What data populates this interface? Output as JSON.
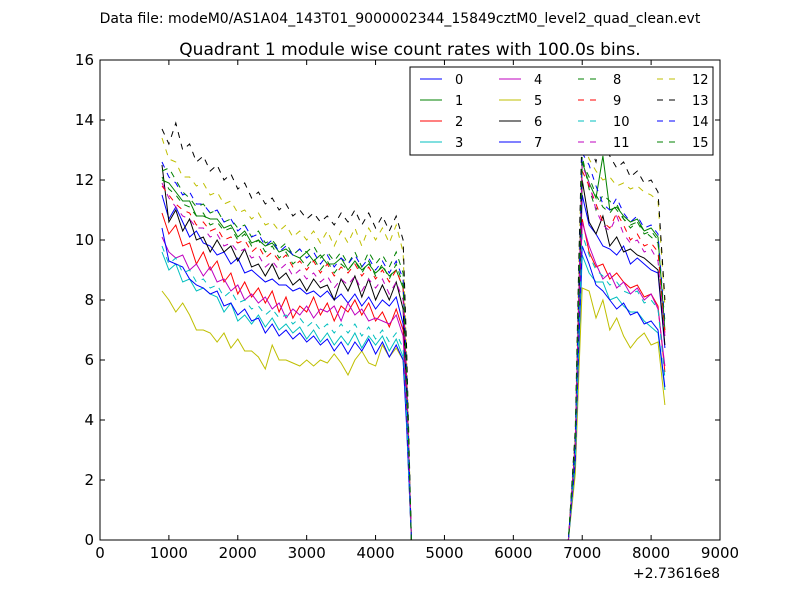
{
  "figure": {
    "suptitle": "Data file: modeM0/AS1A04_143T01_9000002344_15849cztM0_level2_quad_clean.evt",
    "title": "Quadrant 1 module wise count rates with 100.0s bins.",
    "x_offset_text": "+2.73616e8"
  },
  "chart_data": {
    "type": "line",
    "title": "Quadrant 1 module wise count rates with 100.0s bins.",
    "xlabel": "",
    "ylabel": "",
    "xlim": [
      0,
      9000
    ],
    "ylim": [
      0,
      16
    ],
    "x_offset": "+2.73616e8",
    "x_ticks": [
      "0",
      "1000",
      "2000",
      "3000",
      "4000",
      "5000",
      "6000",
      "7000",
      "8000",
      "9000"
    ],
    "y_ticks": [
      "0",
      "2",
      "4",
      "6",
      "8",
      "10",
      "12",
      "14",
      "16"
    ],
    "grid": false,
    "legend": {
      "placement": "top-right",
      "columns": 4
    },
    "x": [
      900,
      1000,
      1100,
      1200,
      1300,
      1400,
      1500,
      1600,
      1700,
      1800,
      1900,
      2000,
      2100,
      2200,
      2300,
      2400,
      2500,
      2600,
      2700,
      2800,
      2900,
      3000,
      3100,
      3200,
      3300,
      3400,
      3500,
      3600,
      3700,
      3800,
      3900,
      4000,
      4100,
      4200,
      4300,
      4400,
      4450,
      4520,
      4600,
      5000,
      5500,
      6000,
      6500,
      6800,
      6900,
      6950,
      7000,
      7100,
      7200,
      7300,
      7400,
      7500,
      7600,
      7700,
      7800,
      7900,
      8000,
      8100,
      8200
    ],
    "series": [
      {
        "name": "0",
        "color": "#0000ff",
        "style": "solid",
        "values": [
          11.5,
          10.7,
          11.1,
          10.6,
          10.1,
          10.3,
          9.9,
          9.8,
          9.5,
          9.6,
          9.2,
          9.4,
          8.9,
          9.0,
          8.8,
          8.6,
          8.7,
          8.5,
          8.5,
          8.3,
          8.4,
          8.2,
          8.3,
          8.1,
          8.3,
          8.0,
          8.2,
          7.9,
          8.2,
          7.8,
          8.1,
          7.7,
          8.0,
          7.8,
          8.1,
          7.2,
          4.8,
          0.0,
          0.0,
          0.0,
          0.0,
          0.0,
          0.0,
          0.0,
          3.0,
          7.5,
          11.5,
          10.5,
          10.2,
          9.8,
          9.7,
          9.5,
          9.8,
          9.2,
          9.4,
          9.2,
          9.0,
          8.9,
          6.4
        ]
      },
      {
        "name": "1",
        "color": "#008000",
        "style": "solid",
        "values": [
          12.0,
          11.9,
          11.6,
          11.3,
          11.3,
          10.8,
          10.8,
          10.7,
          10.7,
          10.4,
          10.5,
          10.1,
          10.3,
          9.9,
          10.0,
          9.8,
          9.9,
          9.6,
          9.7,
          9.5,
          9.4,
          9.6,
          9.3,
          9.5,
          9.2,
          9.2,
          9.4,
          9.0,
          9.3,
          9.0,
          9.2,
          8.9,
          9.1,
          8.8,
          9.0,
          8.4,
          5.5,
          0.0,
          0.0,
          0.0,
          0.0,
          0.0,
          0.0,
          0.0,
          3.3,
          8.2,
          12.6,
          11.9,
          11.4,
          12.8,
          11.0,
          11.1,
          10.8,
          10.6,
          10.7,
          10.3,
          10.4,
          10.1,
          7.0
        ]
      },
      {
        "name": "2",
        "color": "#ff0000",
        "style": "solid",
        "values": [
          10.9,
          10.2,
          10.5,
          9.8,
          9.9,
          9.2,
          9.6,
          9.0,
          9.3,
          8.6,
          8.9,
          8.2,
          8.6,
          8.1,
          8.4,
          7.9,
          8.3,
          7.6,
          8.1,
          7.4,
          7.8,
          7.6,
          8.1,
          7.5,
          7.9,
          7.3,
          7.8,
          7.6,
          8.0,
          7.5,
          7.9,
          7.3,
          7.6,
          7.1,
          7.7,
          7.0,
          4.6,
          0.0,
          0.0,
          0.0,
          0.0,
          0.0,
          0.0,
          0.0,
          2.8,
          7.0,
          10.7,
          9.6,
          9.1,
          9.2,
          8.7,
          8.9,
          8.6,
          8.4,
          8.5,
          8.1,
          8.2,
          7.8,
          5.6
        ]
      },
      {
        "name": "3",
        "color": "#00bfbf",
        "style": "solid",
        "values": [
          9.6,
          9.0,
          9.2,
          8.6,
          8.7,
          8.3,
          8.4,
          8.2,
          8.1,
          7.6,
          7.9,
          7.3,
          7.5,
          7.2,
          7.5,
          7.1,
          7.4,
          7.0,
          7.2,
          6.9,
          7.1,
          6.7,
          7.0,
          6.6,
          6.9,
          6.5,
          6.8,
          6.5,
          6.9,
          6.4,
          6.8,
          6.5,
          6.8,
          6.3,
          6.7,
          6.1,
          4.1,
          0.0,
          0.0,
          0.0,
          0.0,
          0.0,
          0.0,
          0.0,
          2.5,
          6.2,
          9.5,
          8.9,
          8.6,
          8.6,
          8.0,
          8.1,
          7.8,
          7.6,
          7.6,
          7.3,
          7.1,
          6.9,
          5.0
        ]
      },
      {
        "name": "4",
        "color": "#bf00bf",
        "style": "solid",
        "values": [
          10.1,
          9.6,
          9.4,
          9.5,
          9.0,
          9.2,
          8.8,
          9.1,
          8.6,
          8.7,
          8.3,
          8.5,
          8.0,
          8.2,
          7.9,
          8.1,
          7.7,
          7.9,
          7.4,
          7.7,
          7.5,
          7.8,
          7.4,
          7.7,
          7.6,
          7.8,
          7.3,
          7.9,
          7.5,
          7.7,
          7.3,
          7.4,
          7.3,
          7.2,
          7.5,
          6.8,
          4.4,
          0.0,
          0.0,
          0.0,
          0.0,
          0.0,
          0.0,
          0.0,
          2.9,
          7.1,
          10.6,
          9.8,
          9.2,
          8.7,
          8.9,
          8.4,
          8.6,
          8.2,
          8.4,
          8.0,
          8.2,
          7.7,
          5.8
        ]
      },
      {
        "name": "5",
        "color": "#bfbf00",
        "style": "solid",
        "values": [
          8.3,
          8.0,
          7.6,
          7.9,
          7.5,
          7.0,
          7.0,
          6.9,
          6.6,
          6.9,
          6.4,
          6.7,
          6.3,
          6.3,
          6.1,
          5.7,
          6.5,
          6.0,
          6.0,
          5.9,
          5.8,
          6.0,
          5.8,
          6.0,
          5.9,
          6.2,
          5.9,
          5.5,
          6.0,
          6.3,
          5.9,
          5.8,
          6.5,
          6.1,
          6.4,
          6.0,
          3.9,
          0.0,
          0.0,
          0.0,
          0.0,
          0.0,
          0.0,
          0.0,
          2.2,
          5.5,
          8.4,
          8.3,
          7.4,
          8.0,
          7.0,
          7.4,
          6.8,
          6.4,
          6.7,
          6.9,
          6.5,
          6.6,
          4.5
        ]
      },
      {
        "name": "6",
        "color": "#000000",
        "style": "solid",
        "values": [
          12.5,
          10.6,
          11.0,
          10.3,
          10.7,
          10.0,
          10.1,
          9.6,
          10.0,
          9.6,
          9.8,
          9.3,
          9.7,
          9.1,
          9.2,
          8.8,
          9.2,
          8.7,
          8.9,
          8.5,
          8.7,
          8.3,
          8.7,
          8.4,
          8.5,
          8.0,
          8.7,
          8.3,
          8.8,
          8.1,
          8.7,
          8.0,
          8.5,
          8.0,
          8.6,
          7.7,
          5.0,
          0.0,
          0.0,
          0.0,
          0.0,
          0.0,
          0.0,
          0.0,
          3.1,
          7.8,
          12.0,
          10.6,
          10.2,
          10.8,
          9.8,
          10.1,
          9.6,
          9.7,
          9.5,
          9.4,
          9.2,
          9.0,
          6.5
        ]
      },
      {
        "name": "7",
        "color": "#0000ff",
        "style": "solid",
        "values": [
          10.4,
          9.3,
          9.2,
          9.1,
          8.7,
          8.5,
          8.4,
          8.2,
          8.3,
          7.8,
          7.9,
          7.5,
          7.7,
          7.3,
          7.4,
          6.9,
          7.2,
          6.8,
          7.0,
          6.7,
          6.9,
          6.6,
          6.8,
          6.5,
          6.7,
          6.3,
          6.6,
          6.2,
          6.6,
          6.3,
          6.7,
          6.2,
          6.6,
          6.1,
          6.5,
          6.0,
          3.8,
          0.0,
          0.0,
          0.0,
          0.0,
          0.0,
          0.0,
          0.0,
          2.6,
          6.5,
          9.8,
          9.2,
          8.5,
          8.3,
          8.0,
          7.7,
          7.9,
          7.5,
          7.6,
          7.2,
          7.3,
          7.0,
          5.1
        ]
      },
      {
        "name": "8",
        "color": "#008000",
        "style": "dashed",
        "values": [
          12.3,
          12.4,
          12.0,
          11.6,
          11.4,
          11.1,
          11.2,
          10.9,
          11.0,
          10.6,
          10.7,
          10.4,
          10.5,
          10.1,
          10.3,
          9.9,
          10.0,
          9.7,
          9.9,
          9.5,
          9.7,
          9.6,
          9.8,
          9.4,
          9.6,
          9.3,
          9.6,
          9.2,
          9.6,
          9.1,
          9.6,
          9.2,
          9.5,
          9.1,
          9.6,
          8.9,
          5.8,
          0.0,
          0.0,
          0.0,
          0.0,
          0.0,
          0.0,
          0.0,
          3.4,
          8.6,
          12.8,
          11.7,
          11.0,
          11.5,
          11.3,
          11.0,
          10.7,
          10.5,
          10.6,
          10.3,
          10.1,
          9.9,
          7.3
        ]
      },
      {
        "name": "9",
        "color": "#ff0000",
        "style": "dashed",
        "values": [
          11.8,
          11.5,
          11.2,
          11.0,
          10.9,
          10.5,
          10.6,
          10.3,
          10.4,
          10.0,
          10.1,
          9.9,
          10.0,
          9.6,
          9.8,
          9.4,
          9.6,
          9.3,
          9.5,
          9.1,
          9.3,
          9.0,
          9.3,
          8.9,
          9.2,
          8.8,
          9.1,
          8.9,
          9.2,
          8.8,
          9.1,
          8.7,
          9.0,
          8.6,
          9.0,
          8.4,
          5.4,
          0.0,
          0.0,
          0.0,
          0.0,
          0.0,
          0.0,
          0.0,
          3.2,
          8.0,
          12.3,
          11.8,
          11.2,
          10.6,
          10.4,
          10.9,
          10.5,
          10.0,
          10.2,
          9.8,
          9.9,
          9.6,
          6.9
        ]
      },
      {
        "name": "10",
        "color": "#00bfbf",
        "style": "dashed",
        "values": [
          9.8,
          9.2,
          9.4,
          8.9,
          9.0,
          8.6,
          8.7,
          8.4,
          8.5,
          8.1,
          8.3,
          7.9,
          8.0,
          7.7,
          7.8,
          7.5,
          7.7,
          7.4,
          7.5,
          7.2,
          7.4,
          7.1,
          7.3,
          7.0,
          7.2,
          6.9,
          7.2,
          6.9,
          7.2,
          6.8,
          7.1,
          6.7,
          7.0,
          6.6,
          6.9,
          6.4,
          4.2,
          0.0,
          0.0,
          0.0,
          0.0,
          0.0,
          0.0,
          0.0,
          2.7,
          6.8,
          10.2,
          9.5,
          9.0,
          8.8,
          8.5,
          8.6,
          8.3,
          8.2,
          8.3,
          7.9,
          8.0,
          7.7,
          5.4
        ]
      },
      {
        "name": "11",
        "color": "#bf00bf",
        "style": "dashed",
        "values": [
          11.9,
          11.4,
          11.1,
          10.8,
          10.7,
          10.4,
          10.4,
          10.1,
          10.2,
          9.8,
          9.9,
          9.6,
          9.7,
          9.4,
          9.5,
          9.1,
          9.3,
          9.0,
          9.2,
          8.8,
          9.0,
          8.7,
          8.9,
          8.6,
          8.8,
          8.4,
          8.7,
          8.5,
          8.8,
          8.3,
          8.7,
          8.4,
          8.7,
          8.2,
          8.6,
          8.0,
          5.2,
          0.0,
          0.0,
          0.0,
          0.0,
          0.0,
          0.0,
          0.0,
          3.2,
          8.1,
          12.5,
          11.9,
          11.0,
          10.5,
          10.3,
          10.8,
          10.2,
          9.9,
          10.0,
          9.6,
          9.7,
          9.3,
          6.8
        ]
      },
      {
        "name": "12",
        "color": "#bfbf00",
        "style": "dashed",
        "values": [
          13.4,
          12.7,
          12.6,
          12.1,
          12.1,
          11.8,
          11.9,
          11.5,
          11.6,
          11.2,
          11.3,
          10.9,
          11.0,
          10.7,
          10.9,
          10.5,
          10.6,
          10.3,
          10.5,
          10.1,
          10.3,
          10.0,
          10.3,
          9.9,
          10.3,
          9.8,
          10.3,
          9.9,
          10.4,
          9.8,
          10.4,
          10.0,
          10.4,
          9.9,
          10.5,
          9.6,
          6.2,
          0.0,
          0.0,
          0.0,
          0.0,
          0.0,
          0.0,
          0.0,
          3.6,
          9.1,
          13.4,
          12.7,
          12.3,
          12.0,
          12.1,
          11.8,
          11.9,
          11.7,
          11.8,
          11.6,
          11.5,
          11.3,
          7.8
        ]
      },
      {
        "name": "13",
        "color": "#000000",
        "style": "dashed",
        "values": [
          13.7,
          13.2,
          13.9,
          13.0,
          13.2,
          12.6,
          12.8,
          12.3,
          12.5,
          12.0,
          12.2,
          11.7,
          11.9,
          11.4,
          11.6,
          11.2,
          11.4,
          11.0,
          11.2,
          10.8,
          11.0,
          10.7,
          10.9,
          10.6,
          10.8,
          10.5,
          10.9,
          10.6,
          11.0,
          10.5,
          10.9,
          10.4,
          10.8,
          10.3,
          10.8,
          10.0,
          6.4,
          0.0,
          0.0,
          0.0,
          0.0,
          0.0,
          0.0,
          0.0,
          3.7,
          9.3,
          13.8,
          13.2,
          12.6,
          13.7,
          12.8,
          12.4,
          12.6,
          12.1,
          12.3,
          11.9,
          12.0,
          11.6,
          8.0
        ]
      },
      {
        "name": "14",
        "color": "#0000ff",
        "style": "dashed",
        "values": [
          12.6,
          12.1,
          11.9,
          11.5,
          11.6,
          11.2,
          11.2,
          10.9,
          11.0,
          10.6,
          10.7,
          10.3,
          10.5,
          10.1,
          10.2,
          9.8,
          10.0,
          9.6,
          9.8,
          9.5,
          9.7,
          9.4,
          9.6,
          9.2,
          9.5,
          9.1,
          9.4,
          9.2,
          9.5,
          9.1,
          9.4,
          9.0,
          9.3,
          8.9,
          9.3,
          8.7,
          5.6,
          0.0,
          0.0,
          0.0,
          0.0,
          0.0,
          0.0,
          0.0,
          3.4,
          8.4,
          12.9,
          12.5,
          11.8,
          11.2,
          11.0,
          11.4,
          10.9,
          10.6,
          10.8,
          10.4,
          10.5,
          10.2,
          7.2
        ]
      },
      {
        "name": "15",
        "color": "#008000",
        "style": "dashed",
        "values": [
          12.1,
          11.7,
          11.5,
          11.2,
          11.1,
          10.8,
          10.9,
          10.5,
          10.6,
          10.3,
          10.4,
          10.0,
          10.2,
          9.8,
          10.0,
          9.6,
          9.8,
          9.4,
          9.6,
          9.2,
          9.4,
          9.1,
          9.4,
          9.0,
          9.3,
          8.9,
          9.2,
          9.0,
          9.3,
          8.9,
          9.3,
          8.8,
          9.2,
          8.7,
          9.2,
          8.5,
          5.5,
          0.0,
          0.0,
          0.0,
          0.0,
          0.0,
          0.0,
          0.0,
          3.3,
          8.3,
          12.6,
          12.1,
          11.5,
          11.1,
          10.9,
          11.2,
          10.7,
          10.4,
          10.6,
          10.2,
          10.3,
          10.0,
          7.1
        ]
      }
    ]
  }
}
